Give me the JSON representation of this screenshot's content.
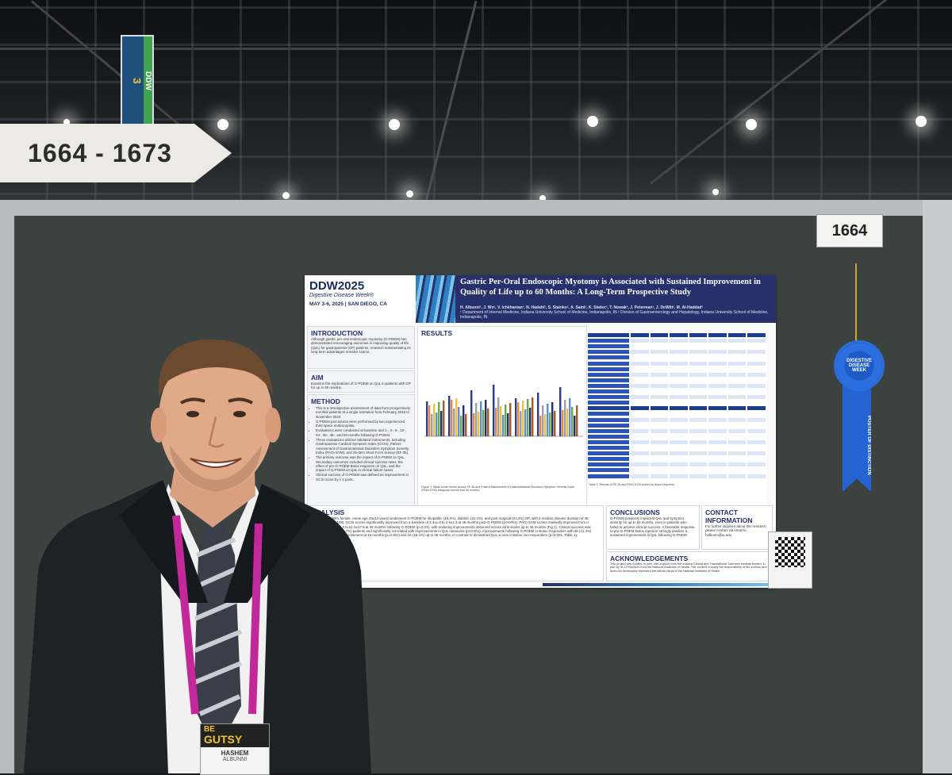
{
  "booth_sign": {
    "range": "1664 - 1673"
  },
  "booth_number": "1664",
  "banner": {
    "text": "DDW",
    "number": "3"
  },
  "ribbon": {
    "text": "DIGESTIVE DISEASE WEEK",
    "tail_text": "POSTER OF DISTINCTION"
  },
  "badge": {
    "tagline_1": "BE",
    "tagline_2": "GUTSY",
    "first_name": "HASHEM",
    "last_name": "ALBUNNI"
  },
  "poster": {
    "logo": "DDW2025",
    "logo_sub": "Digestive Disease Week®",
    "dates": "MAY 3-6, 2025 | SAN DIEGO, CA",
    "title": "Gastric Per-Oral Endoscopic Myotomy is Associated with Sustained Improvement in Quality of Life up to 60 Months: A Long-Term Prospective Study",
    "authors": "H. Albunni¹, J. Wo², V. Ichkhanian², N. Hadahi², S. Stainko², A. Saini², K. Siwiec², T. Nowak², J. Peterman², J. DeWitt², M. Al-Haddad²",
    "affiliations": "¹ Department of Internal Medicine, Indiana University School of Medicine, Indianapolis, IN  ² Division of Gastroenterology and Hepatology, Indiana University School of Medicine, Indianapolis, IN",
    "sections": {
      "introduction": {
        "heading": "INTRODUCTION",
        "text": "Although gastric per-oral endoscopic myotomy (G-POEM) has demonstrated encouraging outcomes in improving quality of life (QoL) for gastroparesis (GP) patients, research substantiating its long-term advantages remains scarce."
      },
      "aim": {
        "heading": "AIM",
        "text": "Examine the implications of G-POEM on QoL in patients with GP for up to 60 months."
      },
      "method": {
        "heading": "METHOD",
        "items": [
          "This is a retrospective assessment of data from prospectively enrolled patients at a single institution from February 2018 to November 2024.",
          "G-POEM procedures were performed by two experienced third space endoscopists.",
          "Evaluations were conducted at baseline and 1-, 3-, 6-, 12-, 24-, 36-, 48-, and 60-months following G-POEM.",
          "These evaluations utilized validated instruments, including Gastroparesis Cardinal Symptom Index (GCSI), Patient Assessment of Gastrointestinal Disorders Symptom Severity Index (PAGI-SYM), and 36-Item Short Form Survey (SF-36).",
          "The primary outcome was the impact of G-POEM on QoL. Secondary outcomes included clinical success rates, the effect of pre-G-POEM Botox response on QoL, and the impact of G-POEM on QoL in clinical failure cases.",
          "Clinical success of G-POEM was defined as improvement in GCSI score by ≥ 1 point."
        ]
      },
      "results": {
        "heading": "RESULTS"
      },
      "analysis": {
        "heading": "ANALYSIS",
        "text": "156 patients (68% female, mean age 49±14 years) underwent G-POEM for idiopathic (45.4%), diabetic (32.4%), and post-surgical (22.2%) GP, with a median disease duration of 48 months (IQR 24-108). GCSI scores significantly improved from a baseline of 3.4±1.0 to 2.5±1.3 at 48 months post-G-POEM (p<0.001). PAGI-SYM scores markedly improved from a baseline of 40.1±18.2 to 51.5±17.8 at 48 months following G-POEM (p=0.03), with enduring improvements observed across all domains up to 48 months (Fig 1). Clinical success was observed in 36/71 (50.7%) patients and significantly correlated with improvements in QoL measures (p<0.001). Improvements following G-POEM in Botox responders with 36 (41.4%) exhibiting sustained improvement at 12 months (p=0.001) and 16 (18.4%) up to 36 months, in contrast to diminished QoL scores in Botox non-responders (p<0.001, Table 1)."
      },
      "conclusions": {
        "heading": "CONCLUSIONS",
        "text": "G-POEM positively impacted QoL and symptom severity for up to 60 months, even in patients who failed to achieve clinical success. A favorable response to pre-G-POEM Botox injection strongly predicts a sustained improvement in QoL following G-POEM."
      },
      "contact": {
        "heading": "CONTACT INFORMATION",
        "text": "For further inquiries about this research, please contact via email to halbunni@iu.edu"
      },
      "acknowledgements": {
        "heading": "ACKNOWLEDGEMENTS",
        "text": "This project was funded, in part, with support from the Indiana Clinical and Translational Sciences Institute funded, in part by UL1TR002529 from the National Institutes of Health. The content is solely the responsibility of the authors and does not necessarily represent the official views of the National Institutes of Health."
      }
    },
    "figure_caption": "Figure 1. Mean score trends across SF-36 and Patient Assessment of Gastrointestinal Disorders Symptom Severity Index (PAGI-SYM) subgroup scores over 60 months.",
    "table_caption": "Table 1. Results of SF-36 and PAGI-SYM scores by Botox response."
  }
}
